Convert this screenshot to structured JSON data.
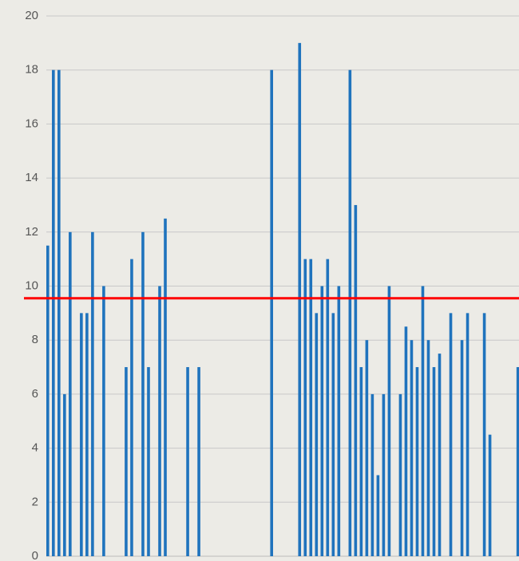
{
  "chart_data": {
    "type": "bar",
    "categories": [
      null,
      null,
      null,
      null,
      null,
      null,
      null,
      null,
      null,
      null,
      null,
      null,
      null,
      null,
      null,
      null,
      null,
      null,
      null,
      null,
      null,
      null,
      null,
      null,
      null,
      null,
      null,
      null,
      null,
      null,
      null,
      null,
      null,
      null,
      null,
      null,
      null,
      null,
      null,
      null,
      null,
      null,
      null,
      null,
      null,
      null,
      null,
      null,
      null,
      null,
      null,
      null,
      null,
      null,
      null,
      null,
      null,
      null,
      null,
      null,
      null,
      null,
      null,
      null,
      null,
      null,
      null,
      null,
      null,
      null,
      null,
      null,
      null,
      null,
      null,
      null,
      null,
      null,
      null,
      null,
      null,
      null,
      null,
      null,
      null
    ],
    "values": [
      11.5,
      18,
      18,
      6,
      12,
      0,
      9,
      9,
      12,
      0,
      10,
      0,
      0,
      0,
      7,
      11,
      0,
      12,
      7,
      0,
      10,
      12.5,
      0,
      0,
      0,
      7,
      0,
      7,
      0,
      0,
      0,
      0,
      0,
      0,
      0,
      0,
      0,
      0,
      0,
      0,
      18,
      0,
      0,
      0,
      0,
      19,
      11,
      11,
      9,
      10,
      11,
      9,
      10,
      0,
      18,
      13,
      7,
      8,
      6,
      3,
      6,
      10,
      0,
      6,
      8.5,
      8,
      7,
      10,
      8,
      7,
      7.5,
      0,
      9,
      0,
      8,
      9,
      0,
      0,
      9,
      4.5,
      0,
      0,
      0,
      0,
      7
    ],
    "color": "#1f73bd",
    "reference_line": 9.55,
    "reference_color": "#ff0000",
    "ylim": [
      0,
      20
    ],
    "yticks": [
      0,
      2,
      4,
      6,
      8,
      10,
      12,
      14,
      16,
      18,
      20
    ],
    "grid": true
  }
}
